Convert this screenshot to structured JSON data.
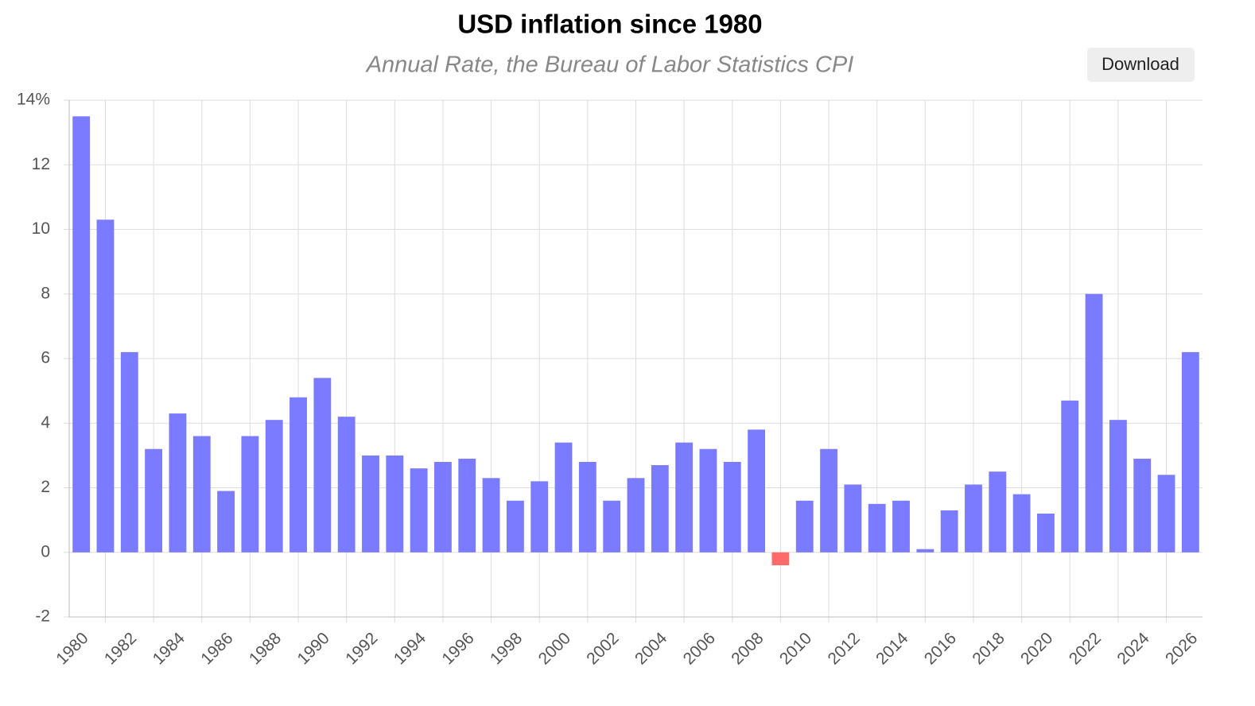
{
  "chart_data": {
    "type": "bar",
    "title": "USD inflation since 1980",
    "subtitle": "Annual Rate, the Bureau of Labor Statistics CPI",
    "download_button": "Download",
    "categories": [
      "1980",
      null,
      "1982",
      null,
      "1984",
      null,
      "1986",
      null,
      "1988",
      null,
      "1990",
      null,
      "1992",
      null,
      "1994",
      null,
      "1996",
      null,
      "1998",
      null,
      "2000",
      null,
      "2002",
      null,
      "2004",
      null,
      "2006",
      null,
      "2008",
      null,
      "2010",
      null,
      "2012",
      null,
      "2014",
      null,
      "2016",
      null,
      "2018",
      null,
      "2020",
      null,
      "2022",
      null,
      "2024",
      null,
      "2026"
    ],
    "values": [
      13.5,
      10.3,
      6.2,
      3.2,
      4.3,
      3.6,
      1.9,
      3.6,
      4.1,
      4.8,
      5.4,
      4.2,
      3.0,
      3.0,
      2.6,
      2.8,
      2.9,
      2.3,
      1.6,
      2.2,
      3.4,
      2.8,
      1.6,
      2.3,
      2.7,
      3.4,
      3.2,
      2.8,
      3.8,
      -0.4,
      1.6,
      3.2,
      2.1,
      1.5,
      1.6,
      0.1,
      1.3,
      2.1,
      2.5,
      1.8,
      1.2,
      4.7,
      8.0,
      4.1,
      2.9,
      2.4,
      6.2
    ],
    "color": "#7b7bff",
    "negative_color": "#ff6b6b",
    "ylim": [
      -2,
      14
    ],
    "yticks": [
      -2,
      0,
      2,
      4,
      6,
      8,
      10,
      {
        "value": 14,
        "label": "14%"
      },
      12
    ],
    "grid": true
  }
}
